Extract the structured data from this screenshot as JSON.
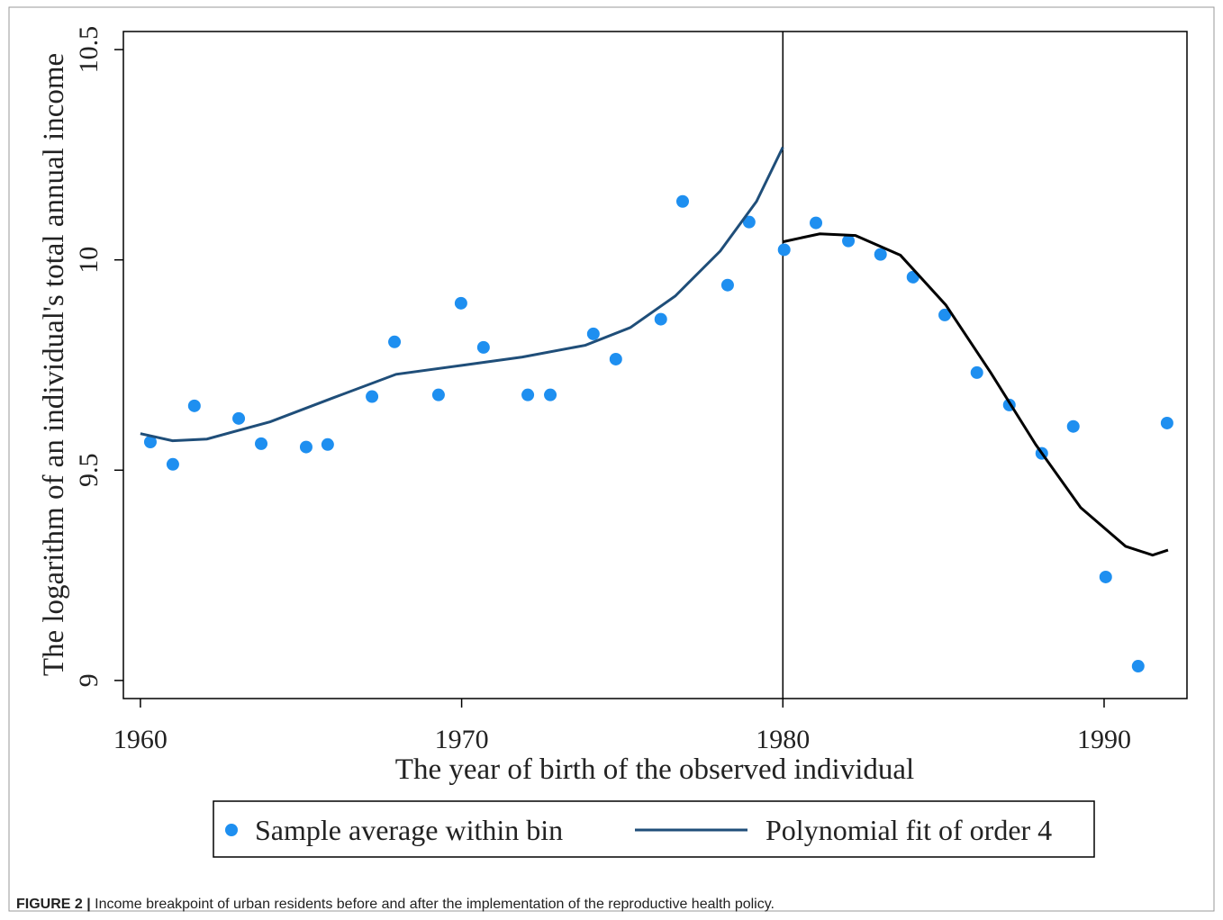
{
  "chart_data": {
    "type": "scatter",
    "xlabel": "The year of birth of the observed individual",
    "ylabel": "The logarithm of an individual's total annual income",
    "xlim": [
      1959.47,
      1992.58
    ],
    "ylim": [
      8.957,
      10.543
    ],
    "xticks": [
      1960,
      1970,
      1980,
      1990
    ],
    "yticks": [
      9,
      9.5,
      10,
      10.5
    ],
    "vline": 1980,
    "series": [
      {
        "name": "Sample average within bin",
        "type": "scatter",
        "color": "#1e8ff0",
        "x": [
          1960.31,
          1961.01,
          1961.68,
          1963.06,
          1963.76,
          1965.16,
          1965.83,
          1967.21,
          1967.91,
          1969.28,
          1969.98,
          1970.68,
          1972.06,
          1972.76,
          1974.1,
          1974.8,
          1976.2,
          1976.88,
          1978.28,
          1978.95,
          1980.04,
          1981.03,
          1982.04,
          1983.04,
          1984.05,
          1985.04,
          1986.04,
          1987.05,
          1988.06,
          1989.04,
          1990.05,
          1991.06,
          1991.96
        ],
        "values": [
          9.567,
          9.514,
          9.653,
          9.623,
          9.563,
          9.555,
          9.561,
          9.675,
          9.805,
          9.679,
          9.897,
          9.792,
          9.679,
          9.679,
          9.824,
          9.764,
          9.859,
          10.139,
          9.94,
          10.09,
          10.024,
          10.088,
          10.045,
          10.013,
          9.959,
          9.869,
          9.732,
          9.655,
          9.54,
          9.604,
          9.246,
          9.034,
          9.612
        ]
      },
      {
        "name": "Polynomial fit of order 4",
        "type": "line",
        "colors": [
          "#1f4e79",
          "#000000"
        ],
        "x": [
          1960.0,
          1961.0,
          1962.07,
          1964.04,
          1966.0,
          1967.96,
          1969.98,
          1971.89,
          1973.85,
          1975.25,
          1976.65,
          1978.05,
          1979.18,
          1980.0,
          null,
          1980.0,
          1981.15,
          1982.26,
          1983.66,
          1985.07,
          1986.47,
          1987.87,
          1989.27,
          1990.67,
          1991.51,
          1991.99
        ],
        "values": [
          9.587,
          9.57,
          9.574,
          9.615,
          9.672,
          9.728,
          9.749,
          9.769,
          9.797,
          9.839,
          9.914,
          10.021,
          10.139,
          10.268,
          null,
          10.043,
          10.062,
          10.058,
          10.011,
          9.893,
          9.732,
          9.561,
          9.411,
          9.319,
          9.298,
          9.31
        ]
      }
    ],
    "caption_label": "FIGURE 2 |",
    "caption": "Income breakpoint of urban residents before and after the implementation of the reproductive health policy."
  }
}
